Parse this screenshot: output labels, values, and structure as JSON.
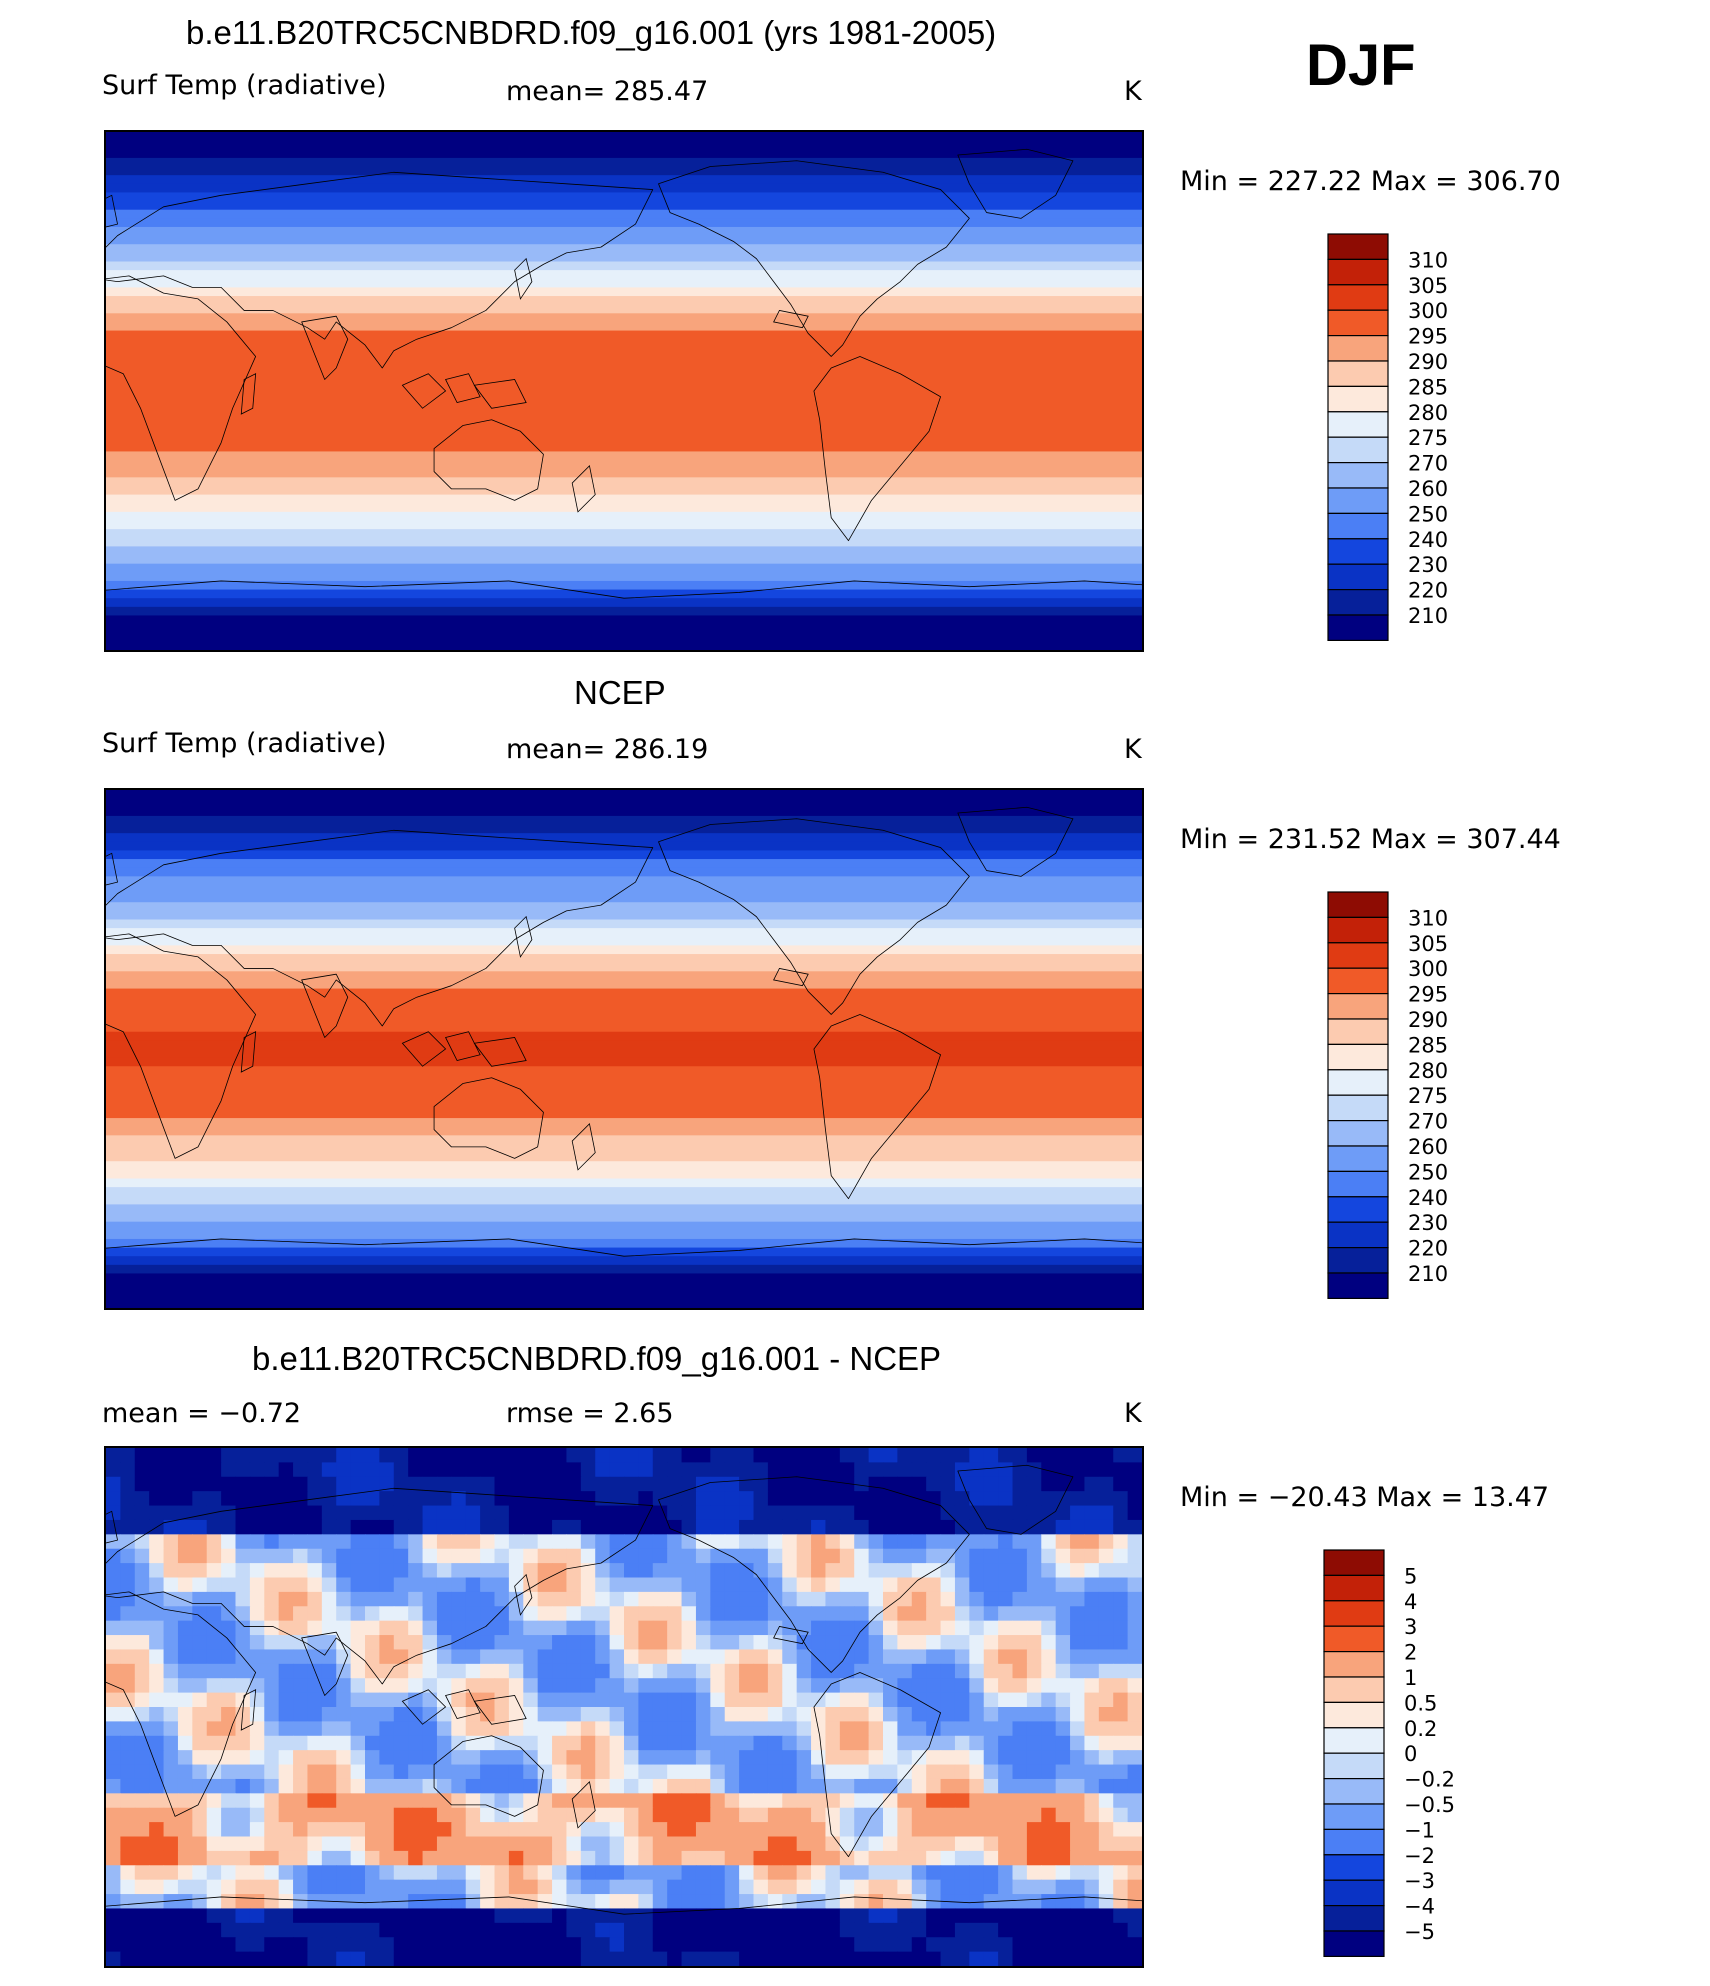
{
  "season": "DJF",
  "colors": {
    "temp": [
      "#000080",
      "#06209a",
      "#0a33c5",
      "#1446de",
      "#2d5ef0",
      "#4b7ff5",
      "#6e9cf7",
      "#98baf8",
      "#c5daf8",
      "#e6f0fa",
      "#fde9dc",
      "#fccbb0",
      "#f8a47c",
      "#f47d4f",
      "#f05a28",
      "#e03b13",
      "#c32108",
      "#8e0c03"
    ],
    "diff": [
      "#000080",
      "#06209a",
      "#0a33c5",
      "#1446de",
      "#2d5ef0",
      "#4b7ff5",
      "#6e9cf7",
      "#98baf8",
      "#c5daf8",
      "#e6f0fa",
      "#fde9dc",
      "#fccbb0",
      "#f8a47c",
      "#f47d4f",
      "#f05a28",
      "#e03b13",
      "#c32108",
      "#8e0c03"
    ]
  },
  "chart_data": [
    {
      "type": "heatmap",
      "title": "b.e11.B20TRC5CNBDRD.f09_g16.001 (yrs 1981-2005)",
      "left_label": "Surf Temp (radiative)",
      "center_label": "mean=  285.47",
      "units": "K",
      "minmax": "Min  =  227.22  Max  =  306.70",
      "colorbar_levels": [
        "310",
        "305",
        "300",
        "295",
        "290",
        "285",
        "280",
        "275",
        "270",
        "260",
        "250",
        "240",
        "230",
        "220",
        "210"
      ],
      "field": "model"
    },
    {
      "type": "heatmap",
      "title": "NCEP",
      "left_label": "Surf Temp (radiative)",
      "center_label": "mean=  286.19",
      "units": "K",
      "minmax": "Min  =  231.52  Max  =  307.44",
      "colorbar_levels": [
        "310",
        "305",
        "300",
        "295",
        "290",
        "285",
        "280",
        "275",
        "270",
        "260",
        "250",
        "240",
        "230",
        "220",
        "210"
      ],
      "field": "obs"
    },
    {
      "type": "heatmap",
      "title": "b.e11.B20TRC5CNBDRD.f09_g16.001 - NCEP",
      "left_label": "mean =    −0.72",
      "center_label": "rmse =     2.65",
      "units": "K",
      "minmax": "Min  =  −20.43  Max  =    13.47",
      "colorbar_levels": [
        "5",
        "4",
        "3",
        "2",
        "1",
        "0.5",
        "0.2",
        "0",
        "−0.2",
        "−0.5",
        "−1",
        "−2",
        "−3",
        "−4",
        "−5"
      ],
      "field": "diff"
    }
  ]
}
